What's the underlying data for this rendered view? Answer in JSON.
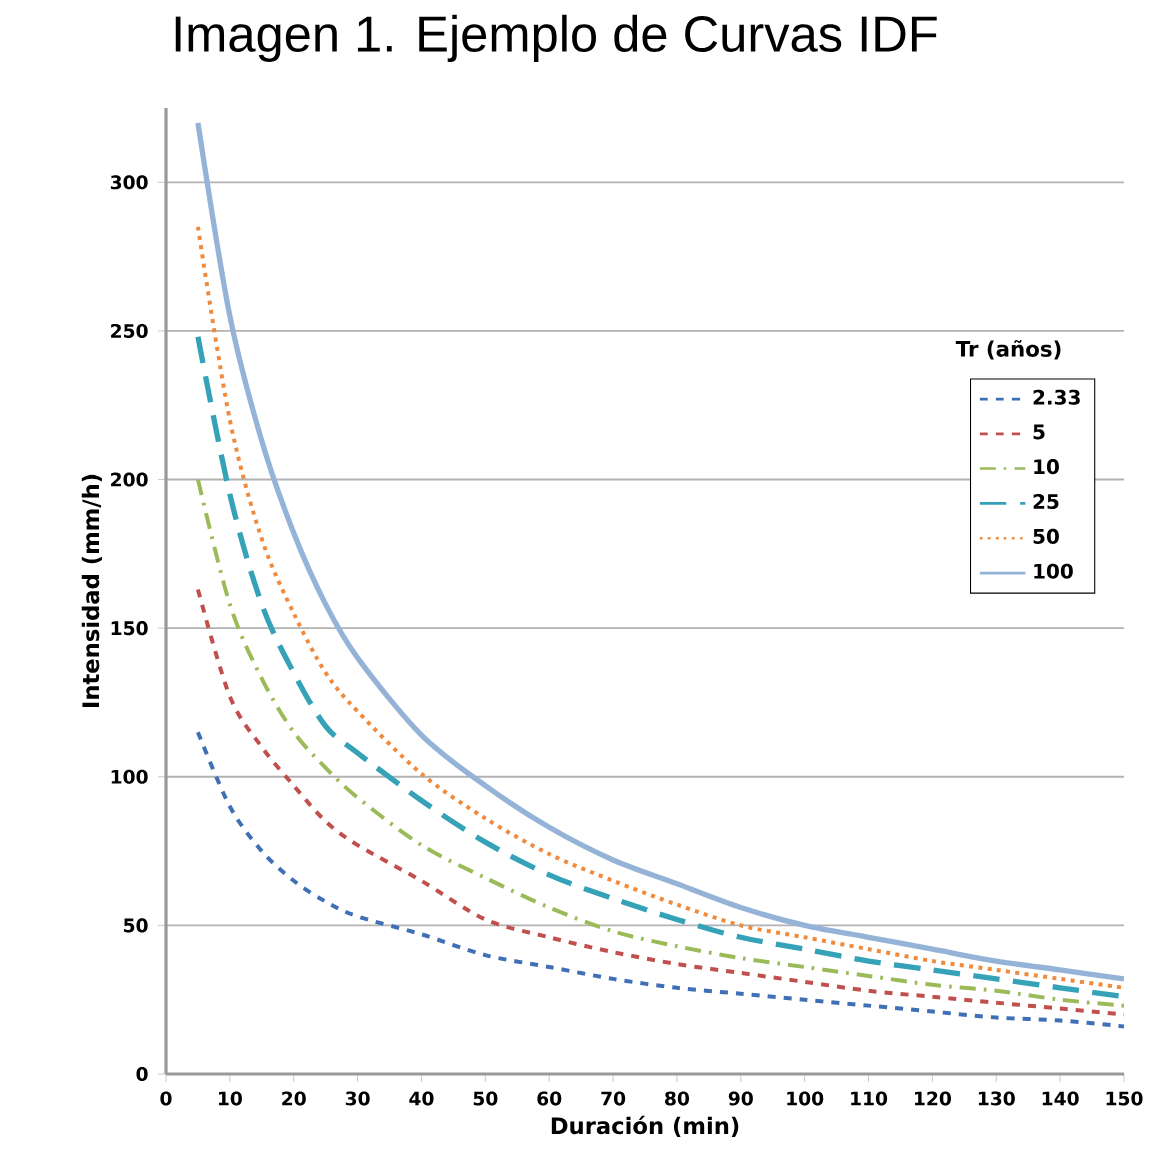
{
  "chart_data": {
    "type": "line",
    "title": "Imagen 1. Ejemplo de Curvas IDF",
    "xlabel": "Duración (min)",
    "ylabel": "Intensidad (mm/h)",
    "legend_title": "Tr (años)",
    "x": [
      5,
      10,
      15,
      20,
      25,
      30,
      40,
      50,
      60,
      70,
      80,
      90,
      100,
      110,
      120,
      130,
      140,
      150
    ],
    "series": [
      {
        "name": "2.33",
        "color": "#3f6fb5",
        "line_style": "dashed",
        "values": [
          115,
          90,
          75,
          65,
          58,
          53,
          47,
          40,
          36,
          32,
          29,
          27,
          25,
          23,
          21,
          19,
          18,
          16
        ]
      },
      {
        "name": "5",
        "color": "#c0504d",
        "line_style": "dashed",
        "values": [
          163,
          127,
          110,
          97,
          85,
          77,
          65,
          52,
          46,
          41,
          37,
          34,
          31,
          28,
          26,
          24,
          22,
          20
        ]
      },
      {
        "name": "10",
        "color": "#9bbb59",
        "line_style": "dashdot",
        "values": [
          200,
          158,
          133,
          115,
          103,
          93,
          77,
          66,
          56,
          48,
          43,
          39,
          36,
          33,
          30,
          28,
          25,
          23
        ]
      },
      {
        "name": "25",
        "color": "#35a2b8",
        "line_style": "longdash",
        "values": [
          248,
          195,
          158,
          135,
          117,
          108,
          92,
          78,
          67,
          59,
          52,
          46,
          42,
          38,
          35,
          32,
          29,
          26
        ]
      },
      {
        "name": "50",
        "color": "#f08a3e",
        "line_style": "dotted",
        "values": [
          285,
          220,
          180,
          155,
          135,
          122,
          101,
          86,
          74,
          65,
          57,
          50,
          46,
          42,
          38,
          35,
          32,
          29
        ]
      },
      {
        "name": "100",
        "color": "#95b3d7",
        "line_style": "solid",
        "values": [
          320,
          255,
          213,
          182,
          158,
          140,
          114,
          97,
          83,
          72,
          64,
          56,
          50,
          46,
          42,
          38,
          35,
          32
        ]
      }
    ],
    "xlim": [
      0,
      150
    ],
    "ylim": [
      0,
      325
    ],
    "xticks": [
      0,
      10,
      20,
      30,
      40,
      50,
      60,
      70,
      80,
      90,
      100,
      110,
      120,
      130,
      140,
      150
    ],
    "yticks": [
      0,
      50,
      100,
      150,
      200,
      250,
      300
    ],
    "grid": "y",
    "legend": "right",
    "marker": "none"
  }
}
